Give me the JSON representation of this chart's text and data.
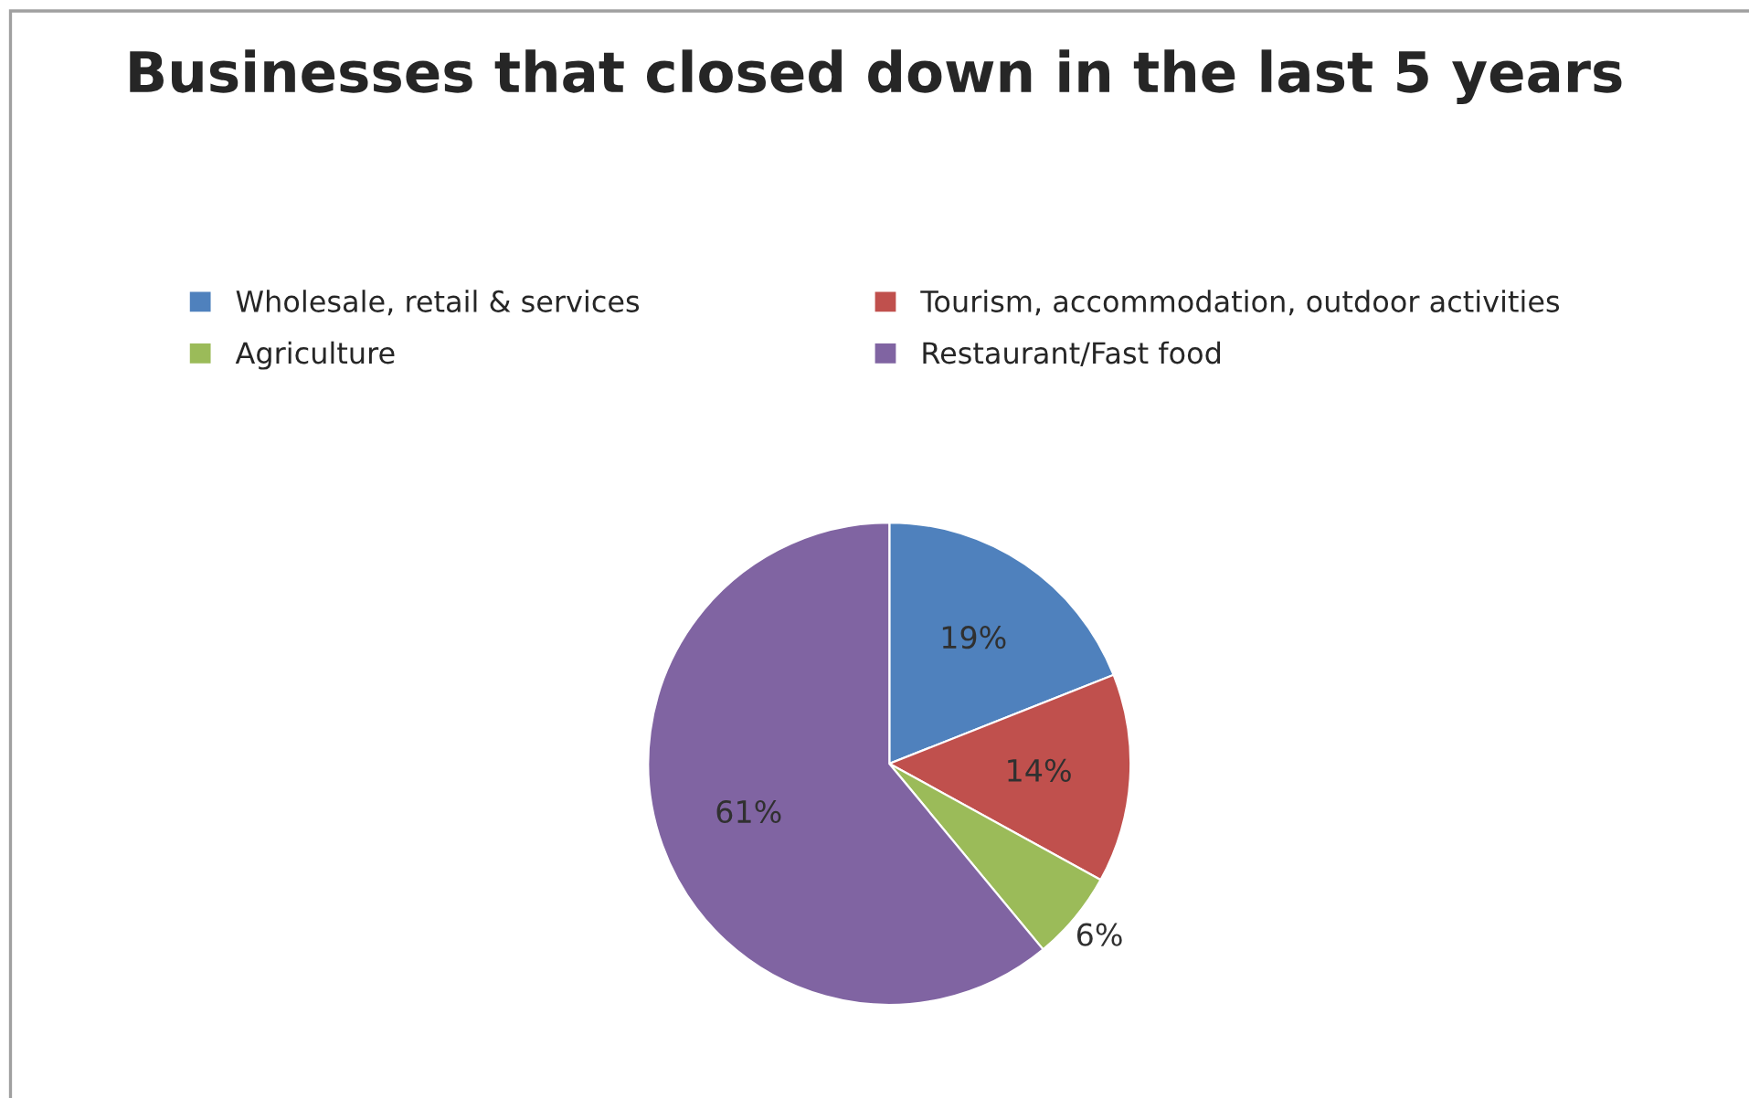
{
  "chart_data": {
    "type": "pie",
    "title": "Businesses that closed down in the last 5 years",
    "categories": [
      "Wholesale, retail & services",
      "Tourism, accommodation, outdoor activities",
      "Agriculture",
      "Restaurant/Fast food"
    ],
    "values": [
      19,
      14,
      6,
      61
    ],
    "colors": [
      "#4f81bd",
      "#c0504d",
      "#9bbb59",
      "#8064a2"
    ],
    "value_labels": [
      "19%",
      "14%",
      "6%",
      "61%"
    ],
    "legend": "top"
  }
}
